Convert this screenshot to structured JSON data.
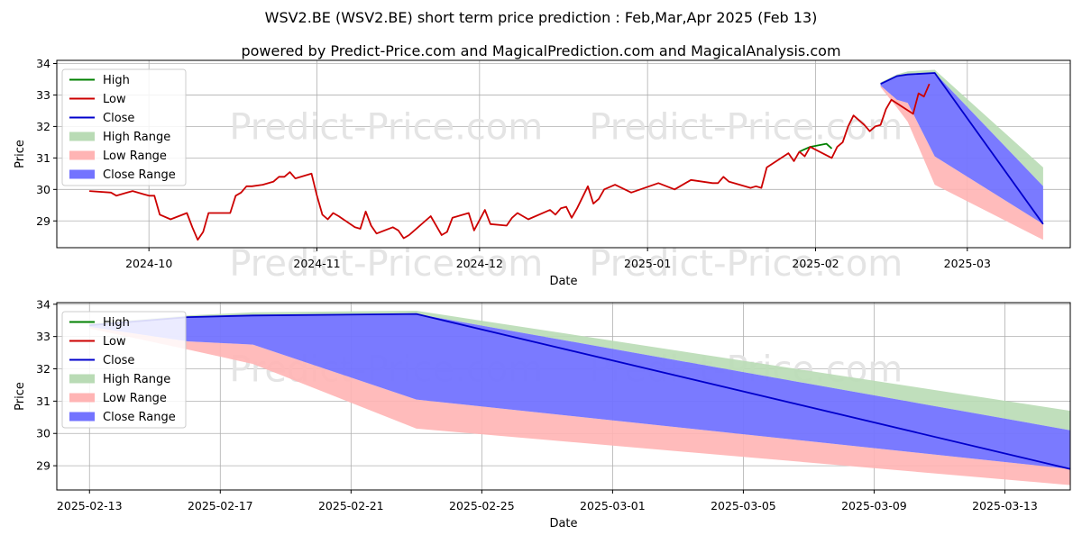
{
  "title": "WSV2.BE (WSV2.BE) short term price prediction : Feb,Mar,Apr 2025 (Feb 13)",
  "subtitle": "powered by Predict-Price.com and MagicalPrediction.com and MagicalAnalysis.com",
  "watermark": "Predict-Price.com",
  "legend": [
    "High",
    "Low",
    "Close",
    "High Range",
    "Low Range",
    "Close Range"
  ],
  "colors": {
    "high": "#008000",
    "low": "#cc0000",
    "close": "#0000cc",
    "high_range": "#b9dbb5",
    "low_range": "#ffb4b4",
    "close_range": "#7373ff"
  },
  "chart_data": [
    {
      "type": "line",
      "xlabel": "Date",
      "ylabel": "Price",
      "xlim": [
        "2024-09-14",
        "2025-03-20"
      ],
      "ylim": [
        28.15,
        34.1
      ],
      "yticks": [
        29,
        30,
        31,
        32,
        33,
        34
      ],
      "xticks": [
        {
          "label": "2024-10",
          "date": "2024-10-01"
        },
        {
          "label": "2024-11",
          "date": "2024-11-01"
        },
        {
          "label": "2024-12",
          "date": "2024-12-01"
        },
        {
          "label": "2025-01",
          "date": "2025-01-01"
        },
        {
          "label": "2025-02",
          "date": "2025-02-01"
        },
        {
          "label": "2025-03",
          "date": "2025-03-01"
        }
      ],
      "grid": true,
      "legend_position": "upper left",
      "series": [
        {
          "name": "Low",
          "points": [
            [
              "2024-09-20",
              29.95
            ],
            [
              "2024-09-24",
              29.9
            ],
            [
              "2024-09-25",
              29.8
            ],
            [
              "2024-09-27",
              29.9
            ],
            [
              "2024-09-28",
              29.95
            ],
            [
              "2024-09-30",
              29.85
            ],
            [
              "2024-10-01",
              29.8
            ],
            [
              "2024-10-02",
              29.8
            ],
            [
              "2024-10-03",
              29.2
            ],
            [
              "2024-10-05",
              29.05
            ],
            [
              "2024-10-08",
              29.25
            ],
            [
              "2024-10-09",
              28.8
            ],
            [
              "2024-10-10",
              28.4
            ],
            [
              "2024-10-11",
              28.65
            ],
            [
              "2024-10-12",
              29.25
            ],
            [
              "2024-10-16",
              29.25
            ],
            [
              "2024-10-17",
              29.8
            ],
            [
              "2024-10-18",
              29.9
            ],
            [
              "2024-10-19",
              30.1
            ],
            [
              "2024-10-20",
              30.1
            ],
            [
              "2024-10-22",
              30.15
            ],
            [
              "2024-10-24",
              30.25
            ],
            [
              "2024-10-25",
              30.4
            ],
            [
              "2024-10-26",
              30.4
            ],
            [
              "2024-10-27",
              30.55
            ],
            [
              "2024-10-28",
              30.35
            ],
            [
              "2024-10-31",
              30.5
            ],
            [
              "2024-11-01",
              29.8
            ],
            [
              "2024-11-02",
              29.2
            ],
            [
              "2024-11-03",
              29.05
            ],
            [
              "2024-11-04",
              29.25
            ],
            [
              "2024-11-05",
              29.15
            ],
            [
              "2024-11-08",
              28.8
            ],
            [
              "2024-11-09",
              28.75
            ],
            [
              "2024-11-10",
              29.3
            ],
            [
              "2024-11-11",
              28.85
            ],
            [
              "2024-11-12",
              28.6
            ],
            [
              "2024-11-15",
              28.8
            ],
            [
              "2024-11-16",
              28.7
            ],
            [
              "2024-11-17",
              28.45
            ],
            [
              "2024-11-18",
              28.55
            ],
            [
              "2024-11-22",
              29.15
            ],
            [
              "2024-11-24",
              28.55
            ],
            [
              "2024-11-25",
              28.65
            ],
            [
              "2024-11-26",
              29.1
            ],
            [
              "2024-11-29",
              29.25
            ],
            [
              "2024-11-30",
              28.7
            ],
            [
              "2024-12-02",
              29.35
            ],
            [
              "2024-12-03",
              28.9
            ],
            [
              "2024-12-06",
              28.85
            ],
            [
              "2024-12-07",
              29.1
            ],
            [
              "2024-12-08",
              29.25
            ],
            [
              "2024-12-10",
              29.05
            ],
            [
              "2024-12-14",
              29.35
            ],
            [
              "2024-12-15",
              29.2
            ],
            [
              "2024-12-16",
              29.4
            ],
            [
              "2024-12-17",
              29.45
            ],
            [
              "2024-12-18",
              29.1
            ],
            [
              "2024-12-19",
              29.4
            ],
            [
              "2024-12-21",
              30.1
            ],
            [
              "2024-12-22",
              29.55
            ],
            [
              "2024-12-23",
              29.7
            ],
            [
              "2024-12-24",
              30.0
            ],
            [
              "2024-12-26",
              30.15
            ],
            [
              "2024-12-29",
              29.9
            ],
            [
              "2025-01-03",
              30.2
            ],
            [
              "2025-01-06",
              30.0
            ],
            [
              "2025-01-09",
              30.3
            ],
            [
              "2025-01-13",
              30.2
            ],
            [
              "2025-01-14",
              30.2
            ],
            [
              "2025-01-15",
              30.4
            ],
            [
              "2025-01-16",
              30.25
            ],
            [
              "2025-01-20",
              30.05
            ],
            [
              "2025-01-21",
              30.1
            ],
            [
              "2025-01-22",
              30.05
            ],
            [
              "2025-01-23",
              30.7
            ],
            [
              "2025-01-27",
              31.15
            ],
            [
              "2025-01-28",
              30.9
            ],
            [
              "2025-01-29",
              31.2
            ]
          ]
        },
        {
          "name": "High",
          "points": [
            [
              "2025-01-29",
              31.2
            ],
            [
              "2025-01-31",
              31.35
            ],
            [
              "2025-02-03",
              31.45
            ],
            [
              "2025-02-04",
              31.3
            ]
          ]
        },
        {
          "name": "Low",
          "points": [
            [
              "2025-01-29",
              31.2
            ],
            [
              "2025-01-30",
              31.05
            ],
            [
              "2025-01-31",
              31.35
            ],
            [
              "2025-02-04",
              31.0
            ],
            [
              "2025-02-05",
              31.35
            ],
            [
              "2025-02-06",
              31.5
            ],
            [
              "2025-02-07",
              32.0
            ],
            [
              "2025-02-08",
              32.35
            ],
            [
              "2025-02-10",
              32.05
            ],
            [
              "2025-02-11",
              31.85
            ],
            [
              "2025-02-12",
              32.0
            ],
            [
              "2025-02-13",
              32.05
            ],
            [
              "2025-02-14",
              32.55
            ],
            [
              "2025-02-15",
              32.85
            ],
            [
              "2025-02-19",
              32.4
            ],
            [
              "2025-02-20",
              33.05
            ],
            [
              "2025-02-21",
              32.95
            ],
            [
              "2025-02-22",
              33.35
            ]
          ]
        }
      ]
    },
    {
      "type": "area",
      "xlabel": "Date",
      "ylabel": "Price",
      "xlim": [
        "2025-02-12",
        "2025-03-15"
      ],
      "ylim": [
        28.25,
        34.05
      ],
      "yticks": [
        29,
        30,
        31,
        32,
        33,
        34
      ],
      "xticks": [
        {
          "label": "2025-02-13",
          "date": "2025-02-13"
        },
        {
          "label": "2025-02-17",
          "date": "2025-02-17"
        },
        {
          "label": "2025-02-21",
          "date": "2025-02-21"
        },
        {
          "label": "2025-02-25",
          "date": "2025-02-25"
        },
        {
          "label": "2025-03-01",
          "date": "2025-03-01"
        },
        {
          "label": "2025-03-05",
          "date": "2025-03-05"
        },
        {
          "label": "2025-03-09",
          "date": "2025-03-09"
        },
        {
          "label": "2025-03-13",
          "date": "2025-03-13"
        }
      ],
      "grid": true,
      "legend_position": "upper left",
      "forecast": {
        "dates": [
          "2025-02-13",
          "2025-02-16",
          "2025-02-18",
          "2025-02-23",
          "2025-03-15"
        ],
        "close": [
          33.35,
          33.6,
          33.65,
          33.7,
          28.9
        ],
        "high_range": {
          "upper": [
            33.4,
            33.65,
            33.75,
            33.8,
            30.7
          ],
          "lower": [
            33.35,
            33.6,
            33.6,
            33.7,
            30.1
          ]
        },
        "close_range": {
          "upper": [
            33.35,
            33.6,
            33.65,
            33.7,
            30.1
          ],
          "lower": [
            33.3,
            32.85,
            32.75,
            31.05,
            28.9
          ]
        },
        "low_range": {
          "upper": [
            33.3,
            32.85,
            32.75,
            31.05,
            28.9
          ],
          "lower": [
            33.25,
            32.6,
            32.15,
            30.15,
            28.4
          ]
        }
      }
    }
  ]
}
